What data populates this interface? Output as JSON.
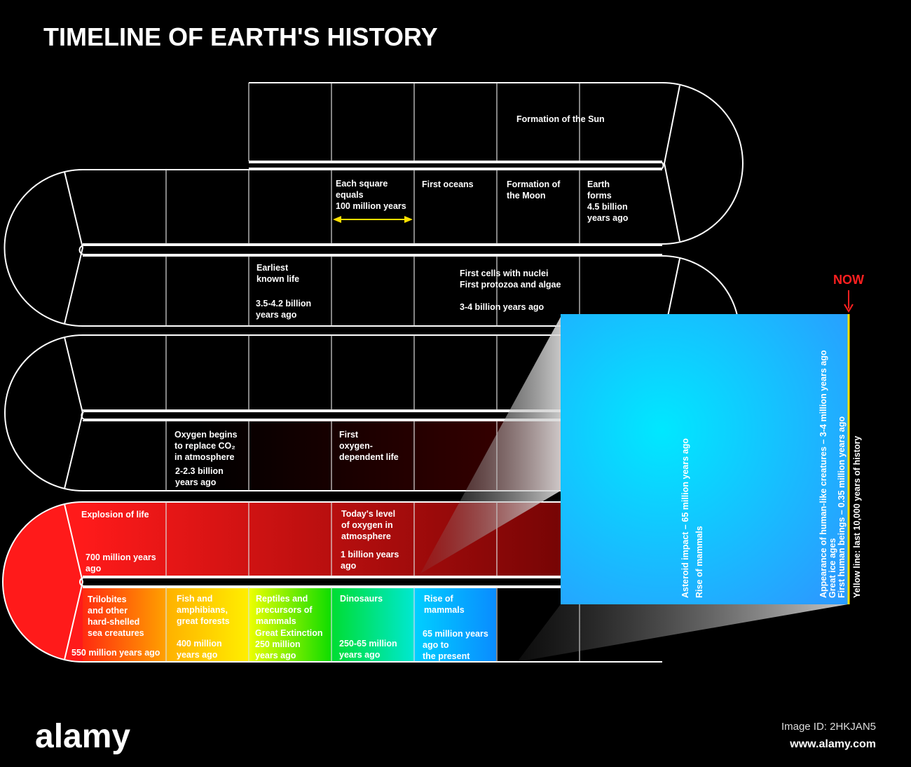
{
  "title": "TIMELINE OF EARTH'S HISTORY",
  "blocks": [
    [
      "Formation of the Sun"
    ],
    [
      "Each square",
      "equals",
      "100 million years"
    ],
    [
      "First oceans"
    ],
    [
      "Formation of",
      "the Moon"
    ],
    [
      "Earth",
      "forms",
      "4.5 billion",
      "years ago"
    ],
    [
      "Earliest",
      "known  life"
    ],
    [
      "3.5-4.2 billion",
      "years ago"
    ],
    [
      "First cells with nuclei",
      "First protozoa and algae"
    ],
    [
      "3-4 billion years ago"
    ],
    [
      "Oxygen begins",
      "to replace CO₂",
      "in atmosphere"
    ],
    [
      "2-2.3 billion",
      "years ago"
    ],
    [
      "First",
      "oxygen-",
      "dependent life"
    ],
    [
      "Explosion of life"
    ],
    [
      "700 million years",
      "ago"
    ],
    [
      "Today's level",
      "of oxygen in",
      "atmosphere"
    ],
    [
      "1 billion years",
      "ago"
    ],
    [
      "Trilobites",
      "and other",
      "hard-shelled",
      "sea creatures"
    ],
    [
      "550 million years ago"
    ],
    [
      "Fish and",
      "amphibians,",
      "great forests"
    ],
    [
      "400 million",
      "years ago"
    ],
    [
      "Reptiles and",
      "precursors of",
      "mammals"
    ],
    [
      "Great Extinction",
      "250 million",
      "years ago"
    ],
    [
      "Dinosaurs"
    ],
    [
      "250-65 million",
      "years ago"
    ],
    [
      "Rise of",
      "mammals"
    ],
    [
      "65 million years",
      "ago to",
      "the present"
    ]
  ],
  "now": "NOW",
  "zoom": [
    "Asteroid impact – 65 million years ago",
    "Rise of mammals",
    "Appearance of human-like creatures – 3-4 million years ago",
    "Great ice ages",
    "First human beings – 0.35 million years ago",
    "Yellow line: last 10,000 years of history"
  ],
  "footer": {
    "logo": "alamy",
    "image_id": "Image ID: 2HKJAN5",
    "url": "www.alamy.com"
  }
}
